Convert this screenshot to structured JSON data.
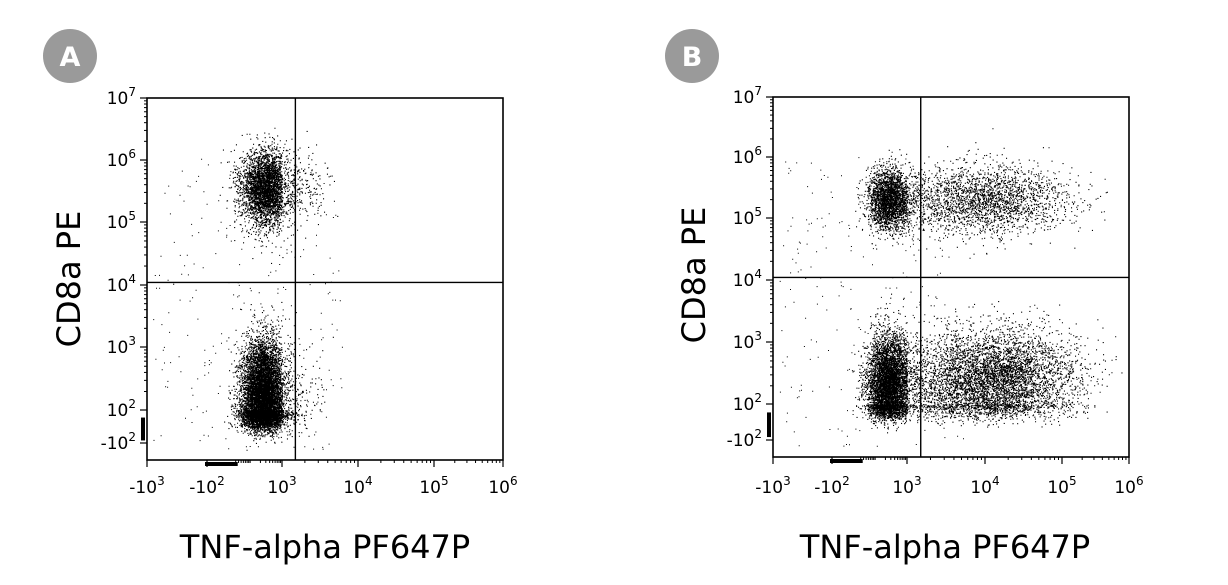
{
  "chart_data": [
    {
      "type": "scatter",
      "panel_label": "A",
      "xlabel": "TNF-alpha PF647P",
      "ylabel": "CD8a PE",
      "x_scale": "biexponential",
      "y_scale": "biexponential",
      "x_ticks": [
        {
          "value": -1000,
          "base": "-10",
          "exp": "3"
        },
        {
          "value": -100,
          "base": "-10",
          "exp": "2"
        },
        {
          "value": 1000,
          "base": "10",
          "exp": "3"
        },
        {
          "value": 10000,
          "base": "10",
          "exp": "4"
        },
        {
          "value": 100000,
          "base": "10",
          "exp": "5"
        },
        {
          "value": 1000000,
          "base": "10",
          "exp": "6"
        }
      ],
      "y_ticks": [
        {
          "value": -100,
          "base": "-10",
          "exp": "2"
        },
        {
          "value": 100,
          "base": "10",
          "exp": "2"
        },
        {
          "value": 1000,
          "base": "10",
          "exp": "3"
        },
        {
          "value": 10000,
          "base": "10",
          "exp": "4"
        },
        {
          "value": 100000,
          "base": "10",
          "exp": "5"
        },
        {
          "value": 1000000,
          "base": "10",
          "exp": "6"
        },
        {
          "value": 10000000,
          "base": "10",
          "exp": "7"
        }
      ],
      "quadrant_gate": {
        "x": 1500,
        "y": 11000
      },
      "populations": [
        {
          "x_center": 250,
          "y_center": 150,
          "x_spread": 0.35,
          "y_spread": 0.45,
          "count": 9000
        },
        {
          "x_center": 300,
          "y_center": 350000,
          "x_spread": 0.4,
          "y_spread": 0.3,
          "count": 3800
        }
      ],
      "quadrant_percent": null
    },
    {
      "type": "scatter",
      "panel_label": "B",
      "xlabel": "TNF-alpha PF647P",
      "ylabel": "CD8a PE",
      "x_scale": "biexponential",
      "y_scale": "biexponential",
      "x_ticks": [
        {
          "value": -1000,
          "base": "-10",
          "exp": "3"
        },
        {
          "value": -100,
          "base": "-10",
          "exp": "2"
        },
        {
          "value": 1000,
          "base": "10",
          "exp": "3"
        },
        {
          "value": 10000,
          "base": "10",
          "exp": "4"
        },
        {
          "value": 100000,
          "base": "10",
          "exp": "5"
        },
        {
          "value": 1000000,
          "base": "10",
          "exp": "6"
        }
      ],
      "y_ticks": [
        {
          "value": -100,
          "base": "-10",
          "exp": "2"
        },
        {
          "value": 100,
          "base": "10",
          "exp": "2"
        },
        {
          "value": 1000,
          "base": "10",
          "exp": "3"
        },
        {
          "value": 10000,
          "base": "10",
          "exp": "4"
        },
        {
          "value": 100000,
          "base": "10",
          "exp": "5"
        },
        {
          "value": 1000000,
          "base": "10",
          "exp": "6"
        },
        {
          "value": 10000000,
          "base": "10",
          "exp": "7"
        }
      ],
      "quadrant_gate": {
        "x": 1500,
        "y": 11000
      },
      "populations": [
        {
          "x_center": 250,
          "y_center": 200,
          "x_spread": 0.35,
          "y_spread": 0.4,
          "count": 5500
        },
        {
          "x_center": 12000,
          "y_center": 250,
          "x_spread": 0.55,
          "y_spread": 0.4,
          "count": 5500
        },
        {
          "x_center": 280,
          "y_center": 200000,
          "x_spread": 0.35,
          "y_spread": 0.25,
          "count": 2600
        },
        {
          "x_center": 10000,
          "y_center": 200000,
          "x_spread": 0.55,
          "y_spread": 0.28,
          "count": 2400
        }
      ],
      "quadrant_percent": null
    }
  ],
  "colors": {
    "badge": "#9a9a9a",
    "dots": "#000000",
    "axis": "#000000"
  }
}
